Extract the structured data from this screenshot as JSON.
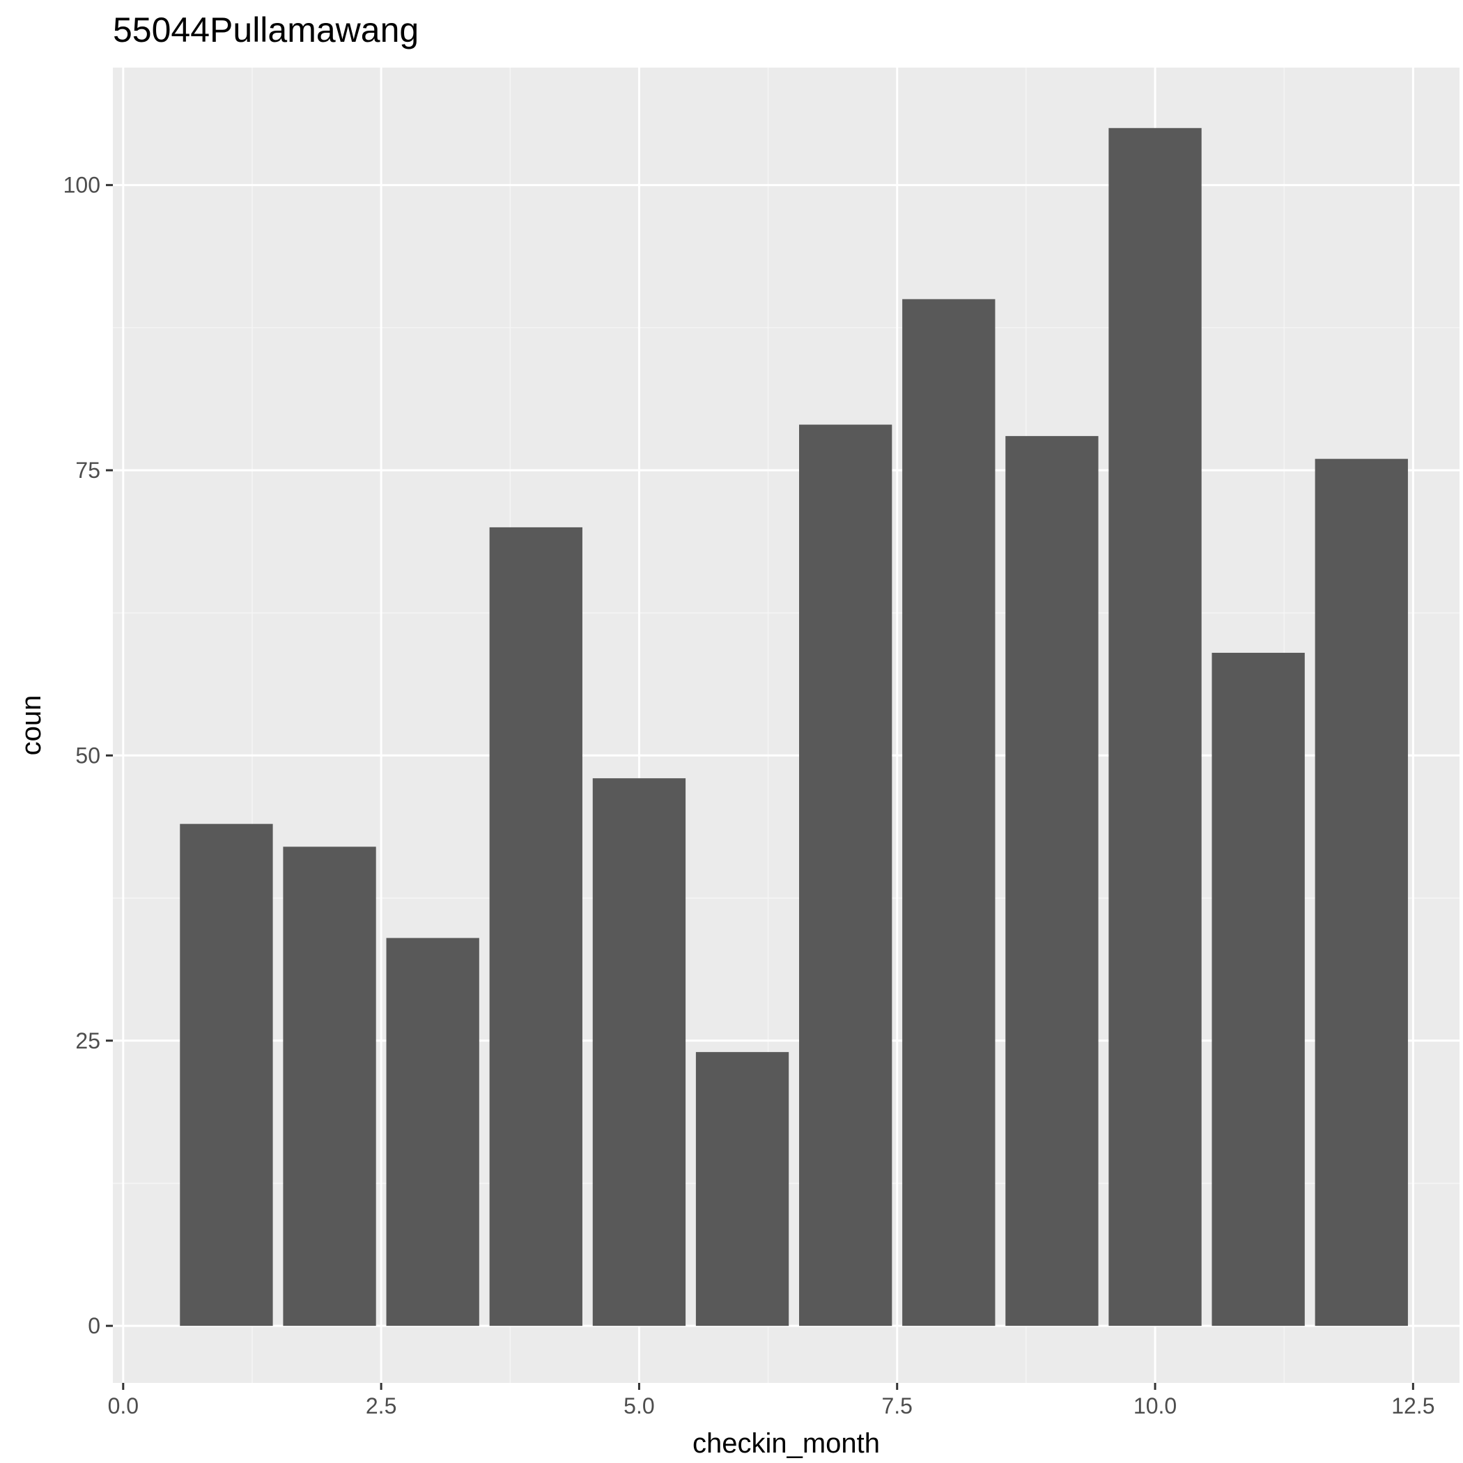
{
  "chart_data": {
    "type": "bar",
    "title": "55044Pullamawang",
    "xlabel": "checkin_month",
    "ylabel": "coun",
    "x": [
      1,
      2,
      3,
      4,
      5,
      6,
      7,
      8,
      9,
      10,
      11,
      12
    ],
    "values": [
      44,
      42,
      34,
      70,
      48,
      24,
      79,
      90,
      78,
      105,
      59,
      76
    ],
    "bar_width": 0.9,
    "xlim": [
      -0.1,
      12.95
    ],
    "ylim": [
      -5,
      110.3
    ],
    "x_ticks": [
      0,
      2.5,
      5,
      7.5,
      10,
      12.5
    ],
    "x_tick_labels": [
      "0.0",
      "2.5",
      "5.0",
      "7.5",
      "10.0",
      "12.5"
    ],
    "y_ticks": [
      0,
      25,
      50,
      75,
      100
    ],
    "y_tick_labels": [
      "0",
      "25",
      "50",
      "75",
      "100"
    ],
    "grid": true,
    "legend": "none",
    "colors": {
      "panel_background": "#ebebeb",
      "grid_major": "#ffffff",
      "grid_minor": "#f5f5f5",
      "bar_fill": "#595959",
      "tick_mark": "#333333"
    }
  }
}
